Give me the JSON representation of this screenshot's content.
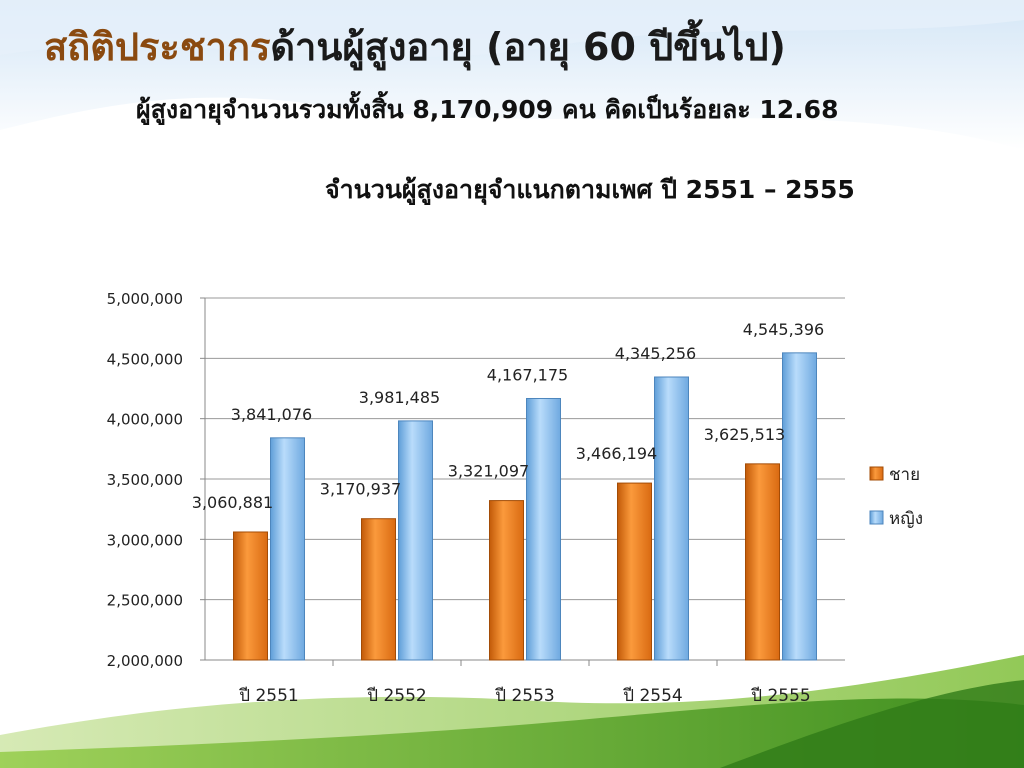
{
  "slide": {
    "title_accent": "สถิติประชากร",
    "title_rest": "ด้านผู้สูงอายุ (อายุ 60 ปีขึ้นไป)",
    "subtitle": "ผู้สูงอายุจำนวนรวมทั้งสิ้น  8,170,909 คน คิดเป็นร้อยละ 12.68"
  },
  "chart_data": {
    "type": "bar",
    "title": "จำนวนผู้สูงอายุจำแนกตามเพศ ปี 2551 – 2555",
    "categories": [
      "ปี 2551",
      "ปี 2552",
      "ปี 2553",
      "ปี 2554",
      "ปี 2555"
    ],
    "series": [
      {
        "name": "ชาย",
        "values": [
          3060881,
          3170937,
          3321097,
          3466194,
          3625513
        ],
        "color": "#f07d1e"
      },
      {
        "name": "หญิง",
        "values": [
          3841076,
          3981485,
          4167175,
          4345256,
          4545396
        ],
        "color": "#8ec3f3"
      }
    ],
    "ylim": [
      2000000,
      5000000
    ],
    "yticks": [
      2000000,
      2500000,
      3000000,
      3500000,
      4000000,
      4500000,
      5000000
    ],
    "ytick_labels": [
      "2,000,000",
      "2,500,000",
      "3,000,000",
      "3,500,000",
      "4,000,000",
      "4,500,000",
      "5,000,000"
    ],
    "data_labels": [
      [
        "3,060,881",
        "3,170,937",
        "3,321,097",
        "3,466,194",
        "3,625,513"
      ],
      [
        "3,841,076",
        "3,981,485",
        "4,167,175",
        "4,345,256",
        "4,545,396"
      ]
    ],
    "grid": true,
    "legend_position": "right"
  }
}
